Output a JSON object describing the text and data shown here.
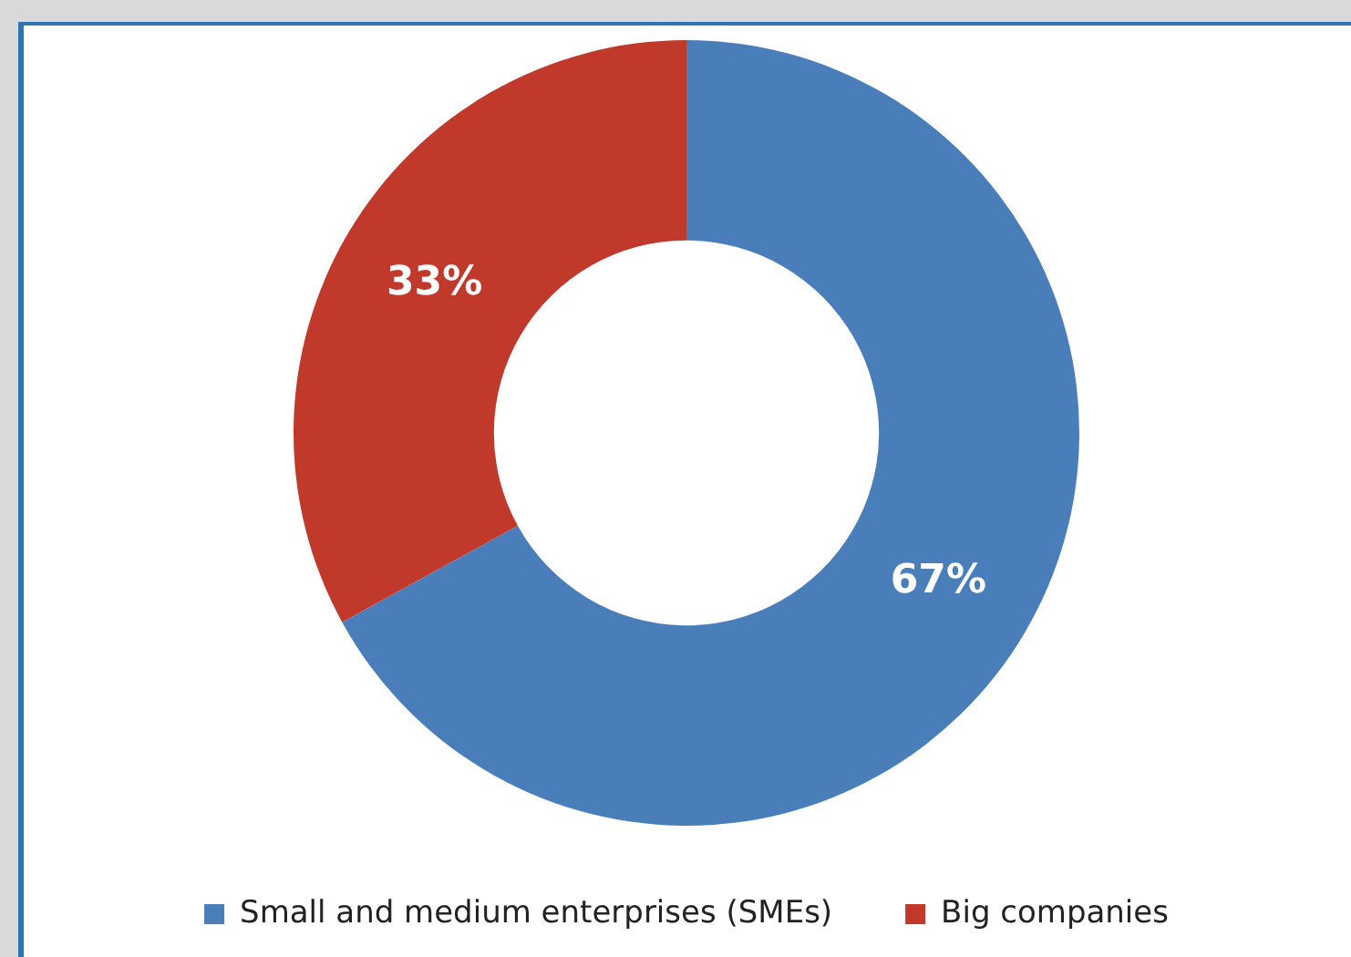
{
  "chart_data": {
    "type": "donut",
    "categories": [
      "Small and medium enterprises (SMEs)",
      "Big companies"
    ],
    "values": [
      67,
      33
    ],
    "colors": [
      "#4a7ebb",
      "#c0392b"
    ],
    "value_labels": [
      "67%",
      "33%"
    ],
    "legend": "bottom"
  }
}
